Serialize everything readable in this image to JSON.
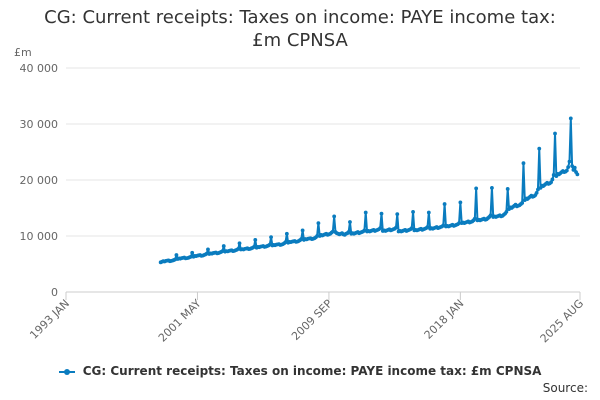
{
  "chart_data": {
    "type": "line",
    "title_lines": [
      "CG: Current receipts: Taxes on income: PAYE income tax:",
      "£m CPNSA"
    ],
    "y_unit": "£m",
    "ylim": [
      0,
      40000
    ],
    "y_ticks": [
      0,
      10000,
      20000,
      30000,
      40000
    ],
    "y_tick_labels": [
      "0",
      "10 000",
      "20 000",
      "30 000",
      "40 000"
    ],
    "x_start": "1993-01",
    "x_end": "2025-08",
    "x_ticks": [
      "1993-01",
      "2001-05",
      "2009-09",
      "2018-01",
      "2025-08"
    ],
    "x_tick_labels": [
      "1993 JAN",
      "2001 MAY",
      "2009 SEP",
      "2018 JAN",
      "2025 AUG"
    ],
    "grid": true,
    "legend_position": "bottom",
    "color": "#0a7cbf",
    "series": [
      {
        "name": "CG: Current receipts: Taxes on income: PAYE income tax: £m CPNSA",
        "frequency": "monthly",
        "start": "1999-01",
        "values": [
          5300,
          5400,
          5500,
          5450,
          5550,
          5600,
          5650,
          5500,
          5550,
          5600,
          5700,
          5800,
          6600,
          5900,
          6000,
          5950,
          6050,
          6100,
          6150,
          6000,
          6050,
          6100,
          6200,
          6300,
          7000,
          6300,
          6450,
          6400,
          6500,
          6550,
          6600,
          6450,
          6500,
          6600,
          6700,
          6850,
          7600,
          6800,
          6900,
          6850,
          6950,
          7000,
          7050,
          6900,
          6950,
          7050,
          7150,
          7300,
          8200,
          7200,
          7300,
          7250,
          7350,
          7400,
          7450,
          7300,
          7350,
          7450,
          7550,
          7700,
          8700,
          7600,
          7650,
          7600,
          7700,
          7750,
          7800,
          7650,
          7700,
          7800,
          7900,
          8050,
          9300,
          7900,
          8050,
          8000,
          8100,
          8150,
          8200,
          8050,
          8100,
          8200,
          8300,
          8450,
          9800,
          8300,
          8400,
          8350,
          8450,
          8500,
          8550,
          8400,
          8450,
          8550,
          8700,
          8900,
          10400,
          8800,
          8950,
          8900,
          9000,
          9050,
          9100,
          8950,
          9000,
          9100,
          9250,
          9450,
          11000,
          9300,
          9450,
          9400,
          9500,
          9550,
          9600,
          9450,
          9500,
          9600,
          9750,
          10000,
          12300,
          10000,
          10200,
          10100,
          10200,
          10300,
          10400,
          10200,
          10300,
          10400,
          10600,
          10800,
          13500,
          10700,
          10500,
          10400,
          10300,
          10400,
          10500,
          10300,
          10200,
          10400,
          10500,
          10700,
          12500,
          10400,
          10500,
          10400,
          10500,
          10600,
          10700,
          10500,
          10600,
          10700,
          10800,
          11000,
          14200,
          10800,
          10900,
          10800,
          10900,
          11000,
          11100,
          10900,
          11000,
          11100,
          11200,
          11400,
          14000,
          10900,
          11000,
          10900,
          11000,
          11100,
          11200,
          11000,
          11100,
          11200,
          11300,
          11500,
          13900,
          10800,
          10900,
          10800,
          10900,
          11000,
          11100,
          10900,
          11000,
          11100,
          11200,
          11400,
          14300,
          11000,
          11100,
          11000,
          11100,
          11200,
          11300,
          11100,
          11200,
          11300,
          11400,
          11600,
          14200,
          11300,
          11400,
          11300,
          11400,
          11500,
          11600,
          11400,
          11500,
          11600,
          11700,
          11900,
          15700,
          11700,
          11800,
          11700,
          11800,
          11900,
          12000,
          11800,
          11900,
          12000,
          12100,
          12300,
          16000,
          12300,
          12400,
          12300,
          12400,
          12500,
          12600,
          12400,
          12500,
          12600,
          12800,
          13100,
          18500,
          12800,
          12900,
          12800,
          12900,
          13000,
          13100,
          12900,
          13000,
          13200,
          13400,
          13700,
          18600,
          13400,
          13500,
          13400,
          13500,
          13600,
          13700,
          13500,
          13600,
          13800,
          14000,
          14300,
          18400,
          14800,
          15100,
          15000,
          15200,
          15400,
          15600,
          15300,
          15400,
          15500,
          15700,
          15900,
          23000,
          16400,
          16700,
          16600,
          16800,
          17000,
          17200,
          17000,
          17100,
          17300,
          17700,
          18300,
          25600,
          18600,
          19000,
          18900,
          19100,
          19300,
          19500,
          19300,
          19400,
          19600,
          20100,
          20900,
          28300,
          20700,
          21100,
          21000,
          21200,
          21400,
          21600,
          21400,
          21500,
          21700,
          22300,
          23300,
          31000,
          22500,
          21800,
          22200,
          21400,
          21000
        ]
      }
    ]
  },
  "source_label": "Source:"
}
